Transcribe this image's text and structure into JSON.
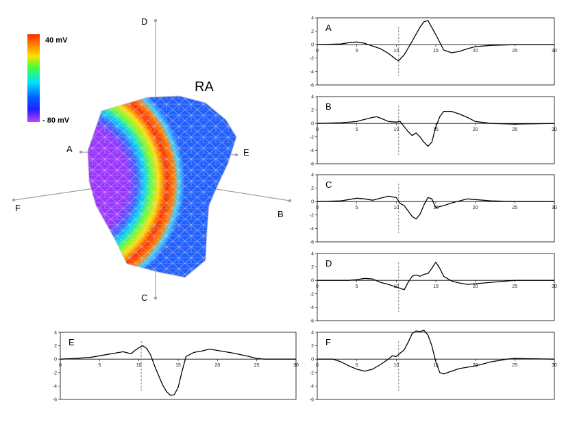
{
  "figure": {
    "chamber_label": "RA",
    "colorbar": {
      "max_label": "40 mV",
      "min_label": "- 80 mV",
      "colors": [
        "#ff2a00",
        "#ff8000",
        "#ffe000",
        "#40ff40",
        "#00e0ff",
        "#0060ff",
        "#2020ff",
        "#c040ff"
      ]
    },
    "axes_labels": {
      "top": "D",
      "bottom": "C",
      "left": "F",
      "right": "B",
      "upper_left": "A",
      "upper_right": "E"
    }
  },
  "chart_data": [
    {
      "type": "line",
      "name": "A",
      "xlim": [
        0,
        30
      ],
      "ylim": [
        -6,
        4
      ],
      "xticks": [
        0,
        5,
        10,
        15,
        20,
        25,
        30
      ],
      "yticks": [
        4,
        2,
        0,
        -2,
        -4,
        -6
      ],
      "marker_x": 10.3,
      "x": [
        0,
        3,
        4,
        5,
        6,
        7,
        8,
        9,
        10,
        10.3,
        11,
        12,
        13,
        13.5,
        14,
        15,
        16,
        17,
        18,
        19,
        20,
        22,
        25,
        30
      ],
      "y": [
        0,
        0.1,
        0.3,
        0.4,
        0.2,
        -0.2,
        -0.6,
        -1.3,
        -2.2,
        -2.4,
        -1.5,
        0.5,
        2.6,
        3.4,
        3.6,
        1.5,
        -0.8,
        -1.2,
        -1,
        -0.6,
        -0.3,
        -0.1,
        0,
        0
      ]
    },
    {
      "type": "line",
      "name": "B",
      "xlim": [
        0,
        30
      ],
      "ylim": [
        -6,
        4
      ],
      "xticks": [
        0,
        5,
        10,
        15,
        20,
        25,
        30
      ],
      "yticks": [
        4,
        2,
        0,
        -2,
        -4,
        -6
      ],
      "marker_x": 10.3,
      "x": [
        0,
        3,
        5,
        6,
        7,
        7.5,
        8,
        9,
        10,
        10.5,
        11,
        11.5,
        12,
        12.5,
        13,
        13.5,
        14,
        14.5,
        15,
        15.5,
        16,
        17,
        18,
        19,
        20,
        22,
        25,
        30
      ],
      "y": [
        0,
        0.1,
        0.3,
        0.6,
        0.9,
        1,
        0.8,
        0.3,
        0.2,
        0.3,
        -0.5,
        -1.2,
        -1.8,
        -1.4,
        -2,
        -2.8,
        -3.4,
        -2.8,
        -0.5,
        1,
        1.8,
        1.8,
        1.4,
        0.9,
        0.3,
        0,
        -0.1,
        0
      ]
    },
    {
      "type": "line",
      "name": "C",
      "xlim": [
        0,
        30
      ],
      "ylim": [
        -6,
        4
      ],
      "xticks": [
        0,
        5,
        10,
        15,
        20,
        25,
        30
      ],
      "yticks": [
        4,
        2,
        0,
        -2,
        -4,
        -6
      ],
      "marker_x": 10.3,
      "x": [
        0,
        3,
        4,
        5,
        6,
        7,
        8,
        9,
        10,
        10.5,
        11,
        11.5,
        12,
        12.5,
        13,
        13.5,
        14,
        14.5,
        15,
        16,
        17,
        18,
        19,
        20,
        22,
        25,
        30
      ],
      "y": [
        0,
        0.1,
        0.3,
        0.5,
        0.4,
        0.2,
        0.5,
        0.8,
        0.6,
        -0.3,
        -0.6,
        -1.4,
        -2.2,
        -2.6,
        -1.9,
        -0.5,
        0.6,
        0.4,
        -0.9,
        -0.6,
        -0.2,
        0.1,
        0.4,
        0.3,
        0.1,
        0,
        0
      ]
    },
    {
      "type": "line",
      "name": "D",
      "xlim": [
        0,
        30
      ],
      "ylim": [
        -6,
        4
      ],
      "xticks": [
        0,
        5,
        10,
        15,
        20,
        25,
        30
      ],
      "yticks": [
        4,
        2,
        0,
        -2,
        -4,
        -6
      ],
      "marker_x": 10.3,
      "x": [
        0,
        4,
        5,
        6,
        7,
        8,
        9,
        10,
        11,
        11.5,
        12,
        12.5,
        13,
        13.5,
        14,
        14.5,
        15,
        15.5,
        16,
        17,
        18,
        19,
        20,
        22,
        25,
        30
      ],
      "y": [
        0,
        0,
        0.1,
        0.3,
        0.2,
        -0.3,
        -0.6,
        -1,
        -1.4,
        -0.3,
        0.6,
        0.8,
        0.6,
        0.9,
        1,
        1.8,
        2.7,
        1.8,
        0.6,
        -0.1,
        -0.4,
        -0.6,
        -0.5,
        -0.3,
        0,
        0
      ]
    },
    {
      "type": "line",
      "name": "E",
      "xlim": [
        0,
        30
      ],
      "ylim": [
        -6,
        4
      ],
      "xticks": [
        0,
        5,
        10,
        15,
        20,
        25,
        30
      ],
      "yticks": [
        4,
        2,
        0,
        -2,
        -4,
        -6
      ],
      "marker_x": 10.3,
      "x": [
        0,
        2,
        4,
        6,
        7,
        8,
        9,
        9.5,
        10,
        10.5,
        11,
        11.5,
        12,
        12.5,
        13,
        13.5,
        14,
        14.5,
        15,
        15.5,
        16,
        17,
        18,
        19,
        20,
        22,
        24,
        25,
        26,
        30
      ],
      "y": [
        0,
        0.1,
        0.3,
        0.7,
        0.9,
        1.1,
        0.8,
        1.3,
        1.7,
        2,
        1.6,
        0.6,
        -1,
        -2.4,
        -3.8,
        -4.8,
        -5.4,
        -5.3,
        -4.2,
        -1.8,
        0.4,
        1,
        1.2,
        1.5,
        1.3,
        0.9,
        0.4,
        0.1,
        0,
        0
      ]
    },
    {
      "type": "line",
      "name": "F",
      "xlim": [
        0,
        30
      ],
      "ylim": [
        -6,
        4
      ],
      "xticks": [
        0,
        5,
        10,
        15,
        20,
        25,
        30
      ],
      "yticks": [
        4,
        2,
        0,
        -2,
        -4,
        -6
      ],
      "marker_x": 10.3,
      "x": [
        0,
        2,
        3,
        4,
        5,
        6,
        7,
        8,
        9,
        9.5,
        10,
        10.5,
        11,
        11.5,
        12,
        12.5,
        13,
        13.5,
        14,
        14.5,
        15,
        15.5,
        16,
        17,
        18,
        19,
        20,
        21,
        22,
        23,
        24,
        25,
        30
      ],
      "y": [
        0,
        0,
        -0.4,
        -1,
        -1.5,
        -1.8,
        -1.5,
        -0.8,
        0,
        0.5,
        0.4,
        0.9,
        1.4,
        2.5,
        3.8,
        4.2,
        4.1,
        4.3,
        3.6,
        2,
        -0.4,
        -2,
        -2.2,
        -1.8,
        -1.4,
        -1.2,
        -1,
        -0.7,
        -0.4,
        -0.2,
        0,
        0.1,
        0
      ]
    }
  ]
}
